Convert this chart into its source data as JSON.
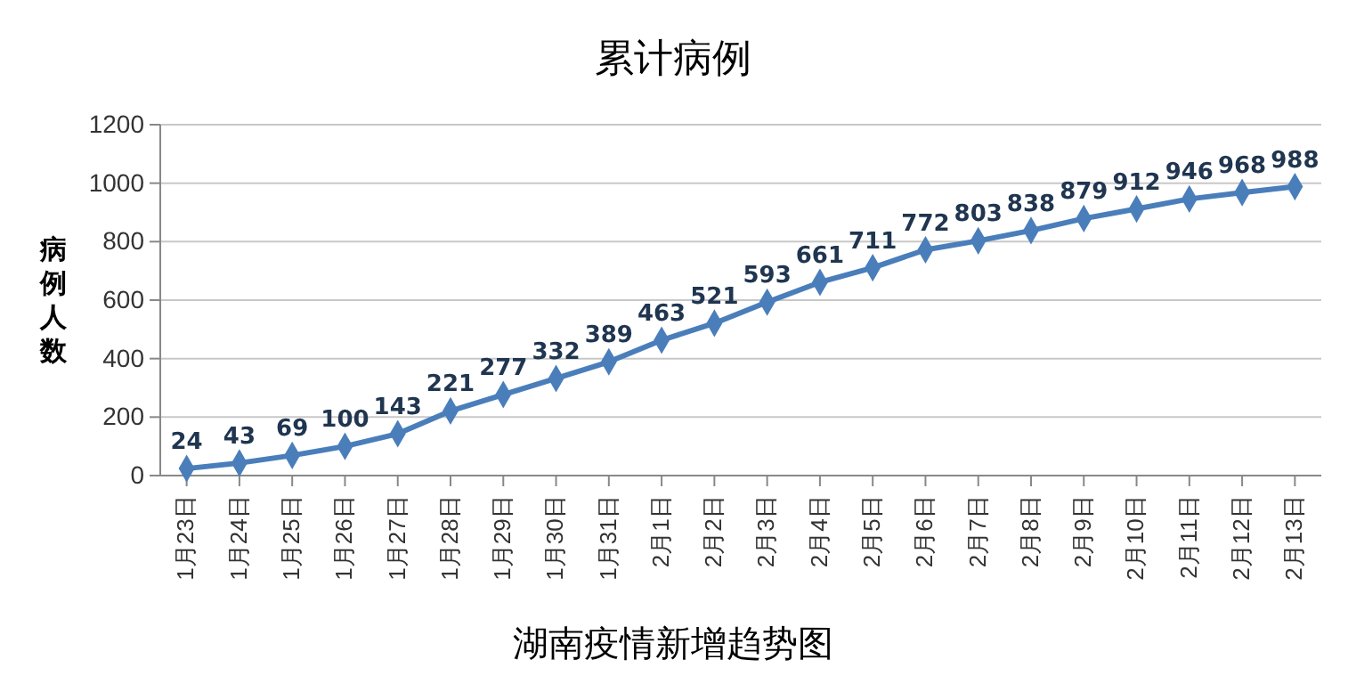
{
  "chart_data": {
    "type": "line",
    "title": "累计病例",
    "xlabel": "湖南疫情新增趋势图",
    "ylabel": "病例人数",
    "categories": [
      "1月23日",
      "1月24日",
      "1月25日",
      "1月26日",
      "1月27日",
      "1月28日",
      "1月29日",
      "1月30日",
      "1月31日",
      "2月1日",
      "2月2日",
      "2月3日",
      "2月4日",
      "2月5日",
      "2月6日",
      "2月7日",
      "2月8日",
      "2月9日",
      "2月10日",
      "2月11日",
      "2月12日",
      "2月13日"
    ],
    "series": [
      {
        "color": "#4a7ebb",
        "values": [
          24,
          43,
          69,
          100,
          143,
          221,
          277,
          332,
          389,
          463,
          521,
          593,
          661,
          711,
          772,
          803,
          838,
          879,
          912,
          946,
          968,
          988
        ]
      }
    ],
    "ylim": [
      0,
      1200
    ],
    "yticks": [
      0,
      200,
      400,
      600,
      800,
      1000,
      1200
    ],
    "grid": "y",
    "marker": "diamond",
    "data_labels": true
  }
}
